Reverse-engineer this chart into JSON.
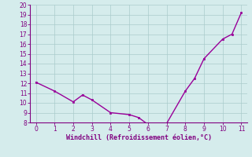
{
  "x": [
    0,
    1,
    2,
    2.5,
    3,
    4,
    5,
    5.5,
    6,
    7,
    8,
    8.5,
    9,
    10,
    10.5,
    11
  ],
  "y": [
    12.1,
    11.2,
    10.1,
    10.8,
    10.3,
    9.0,
    8.8,
    8.5,
    7.8,
    7.9,
    11.2,
    12.5,
    14.5,
    16.5,
    17.0,
    19.2
  ],
  "xlim": [
    -0.3,
    11.3
  ],
  "ylim": [
    8,
    20
  ],
  "xticks": [
    0,
    1,
    2,
    3,
    4,
    5,
    6,
    7,
    8,
    9,
    10,
    11
  ],
  "yticks": [
    8,
    9,
    10,
    11,
    12,
    13,
    14,
    15,
    16,
    17,
    18,
    19,
    20
  ],
  "xlabel": "Windchill (Refroidissement éolien,°C)",
  "line_color": "#990099",
  "marker_color": "#990099",
  "bg_color": "#d5ecec",
  "grid_color": "#aacccc",
  "tick_color": "#800080",
  "label_color": "#800080"
}
